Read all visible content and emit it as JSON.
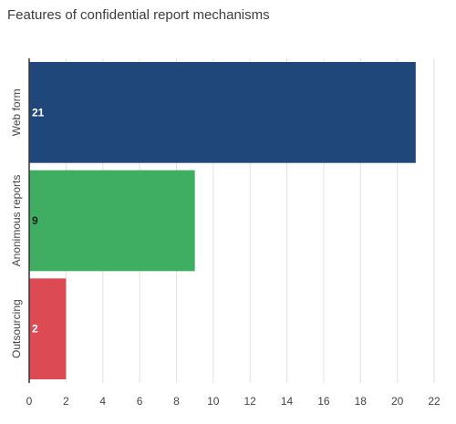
{
  "chart_data": {
    "type": "bar",
    "orientation": "horizontal",
    "title": "Features of confidential report mechanisms",
    "xlabel": "",
    "ylabel": "",
    "categories": [
      "Web form",
      "Anonimous reports",
      "Outsourcing"
    ],
    "values": [
      21,
      9,
      2
    ],
    "xlim": [
      0,
      22
    ],
    "xticks": [
      0,
      2,
      4,
      6,
      8,
      10,
      12,
      14,
      16,
      18,
      20,
      22
    ],
    "grid": "vertical",
    "legend": "none",
    "colors": [
      "#1f477a",
      "#3fae62",
      "#dc4b54"
    ],
    "label_colors": [
      "#ffffff",
      "#222222",
      "#ffffff"
    ]
  }
}
